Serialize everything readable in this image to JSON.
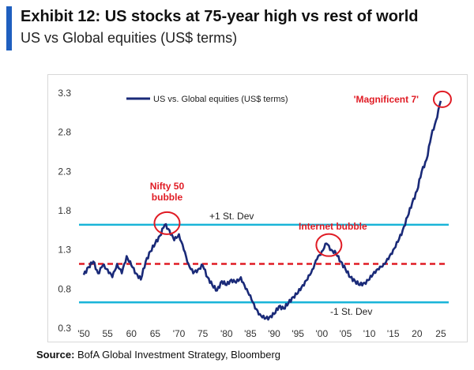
{
  "header": {
    "title": "Exhibit 12: US stocks at 75-year high vs rest of world",
    "subtitle": "US vs Global equities (US$ terms)"
  },
  "source": {
    "label": "Source:",
    "text": "BofA Global Investment Strategy, Bloomberg"
  },
  "colors": {
    "accent": "#1f5fbf",
    "series": "#1a2a78",
    "band": "#19b4d8",
    "mean": "#e01b24",
    "highlight": "#e01b24"
  },
  "chart_data": {
    "type": "line",
    "title": "",
    "xlabel": "",
    "ylabel": "",
    "xlim": [
      1949,
      2027
    ],
    "ylim": [
      0.3,
      3.4
    ],
    "x_ticks": [
      1950,
      1955,
      1960,
      1965,
      1970,
      1975,
      1980,
      1985,
      1990,
      1995,
      2000,
      2005,
      2010,
      2015,
      2020,
      2025
    ],
    "x_tick_labels": [
      "'50",
      "55",
      "60",
      "65",
      "'70",
      "75",
      "'80",
      "'85",
      "'90",
      "'95",
      "'00",
      "'05",
      "'10",
      "'15",
      "20",
      "25"
    ],
    "y_ticks": [
      0.3,
      0.8,
      1.3,
      1.8,
      2.3,
      2.8,
      3.3
    ],
    "y_tick_labels": [
      "0.3",
      "0.8",
      "1.3",
      "1.8",
      "2.3",
      "2.8",
      "3.3"
    ],
    "legend": {
      "position": "top-left",
      "entries": [
        "US vs. Global equities (US$ terms)"
      ]
    },
    "series": [
      {
        "name": "US vs. Global equities (US$ terms)",
        "x": [
          1950,
          1951,
          1952,
          1953,
          1954,
          1955,
          1956,
          1957,
          1958,
          1959,
          1960,
          1961,
          1962,
          1963,
          1964,
          1965,
          1966,
          1967,
          1968,
          1969,
          1970,
          1971,
          1972,
          1973,
          1974,
          1975,
          1976,
          1977,
          1978,
          1979,
          1980,
          1981,
          1982,
          1983,
          1984,
          1985,
          1986,
          1987,
          1988,
          1989,
          1990,
          1991,
          1992,
          1993,
          1994,
          1995,
          1996,
          1997,
          1998,
          1999,
          2000,
          2001,
          2002,
          2003,
          2004,
          2005,
          2006,
          2007,
          2008,
          2009,
          2010,
          2011,
          2012,
          2013,
          2014,
          2015,
          2016,
          2017,
          2018,
          2019,
          2020,
          2021,
          2022,
          2023,
          2024,
          2025
        ],
        "values": [
          0.98,
          1.08,
          1.15,
          1.0,
          1.1,
          1.05,
          0.95,
          1.12,
          1.0,
          1.22,
          1.1,
          1.0,
          0.92,
          1.15,
          1.28,
          1.38,
          1.48,
          1.62,
          1.55,
          1.42,
          1.5,
          1.3,
          1.12,
          1.0,
          1.05,
          1.1,
          0.95,
          0.85,
          0.78,
          0.9,
          0.85,
          0.92,
          0.88,
          0.95,
          0.8,
          0.72,
          0.55,
          0.48,
          0.42,
          0.44,
          0.48,
          0.58,
          0.55,
          0.62,
          0.7,
          0.75,
          0.85,
          0.92,
          1.05,
          1.18,
          1.28,
          1.38,
          1.3,
          1.25,
          1.15,
          1.05,
          0.95,
          0.9,
          0.85,
          0.88,
          0.92,
          1.02,
          1.05,
          1.12,
          1.18,
          1.3,
          1.4,
          1.55,
          1.72,
          1.9,
          2.05,
          2.3,
          2.45,
          2.75,
          2.95,
          3.2
        ]
      }
    ],
    "reference_lines": [
      {
        "name": "+1 St. Dev",
        "value": 1.62,
        "style": "solid"
      },
      {
        "name": "mean",
        "value": 1.12,
        "style": "dashed"
      },
      {
        "name": "-1 St. Dev",
        "value": 0.63,
        "style": "solid"
      }
    ],
    "annotations": [
      {
        "text_lines": [
          "Nifty 50",
          "bubble"
        ],
        "x": 1967.5,
        "y": 1.62,
        "circled": true
      },
      {
        "text_lines": [
          "Internet bubble"
        ],
        "x": 2001.5,
        "y": 1.36,
        "circled": true
      },
      {
        "text_lines": [
          "'Magnificent 7'"
        ],
        "x": 2025,
        "y": 3.2,
        "circled": true
      }
    ]
  }
}
